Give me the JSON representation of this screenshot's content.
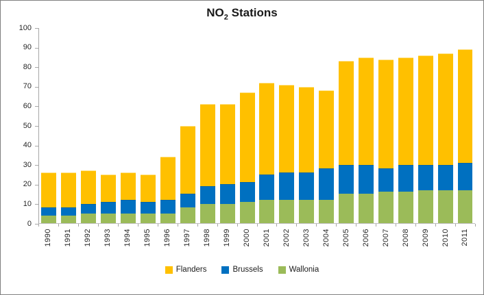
{
  "title": {
    "prefix": "NO",
    "subscript": "2",
    "suffix": " Stations"
  },
  "colors": {
    "flanders": "#FFC000",
    "brussels": "#0070C0",
    "wallonia": "#9BBB59",
    "axis_line": "#bfbfbf",
    "tick": "#a6a6a6",
    "text": "#262626"
  },
  "chart_data": {
    "type": "bar",
    "stacked": true,
    "title": "NO2 Stations",
    "xlabel": "",
    "ylabel": "",
    "ylim": [
      0,
      100
    ],
    "yticks": [
      0,
      10,
      20,
      30,
      40,
      50,
      60,
      70,
      80,
      90,
      100
    ],
    "grid": false,
    "legend_position": "bottom",
    "legend_order": [
      "Flanders",
      "Brussels",
      "Wallonia"
    ],
    "categories": [
      "1990",
      "1991",
      "1992",
      "1993",
      "1994",
      "1995",
      "1996",
      "1997",
      "1998",
      "1999",
      "2000",
      "2001",
      "2002",
      "2003",
      "2004",
      "2005",
      "2006",
      "2007",
      "2008",
      "2009",
      "2010",
      "2011"
    ],
    "series": [
      {
        "name": "Wallonia",
        "color": "#9BBB59",
        "stack_position": "bottom",
        "values": [
          4,
          4,
          5,
          5,
          5,
          5,
          5,
          8,
          10,
          10,
          11,
          12,
          12,
          12,
          12,
          15,
          15,
          16,
          16,
          17,
          17,
          17
        ]
      },
      {
        "name": "Brussels",
        "color": "#0070C0",
        "stack_position": "middle",
        "values": [
          4,
          4,
          5,
          6,
          7,
          6,
          7,
          7,
          9,
          10,
          10,
          13,
          14,
          14,
          16,
          15,
          15,
          12,
          14,
          13,
          13,
          14
        ]
      },
      {
        "name": "Flanders",
        "color": "#FFC000",
        "stack_position": "top",
        "values": [
          18,
          18,
          17,
          14,
          14,
          14,
          22,
          35,
          42,
          41,
          46,
          47,
          45,
          44,
          40,
          53,
          55,
          56,
          55,
          56,
          57,
          58
        ]
      }
    ],
    "totals": [
      26,
      26,
      27,
      25,
      26,
      25,
      34,
      50,
      61,
      61,
      67,
      72,
      71,
      70,
      68,
      83,
      85,
      84,
      85,
      86,
      87,
      89
    ]
  }
}
